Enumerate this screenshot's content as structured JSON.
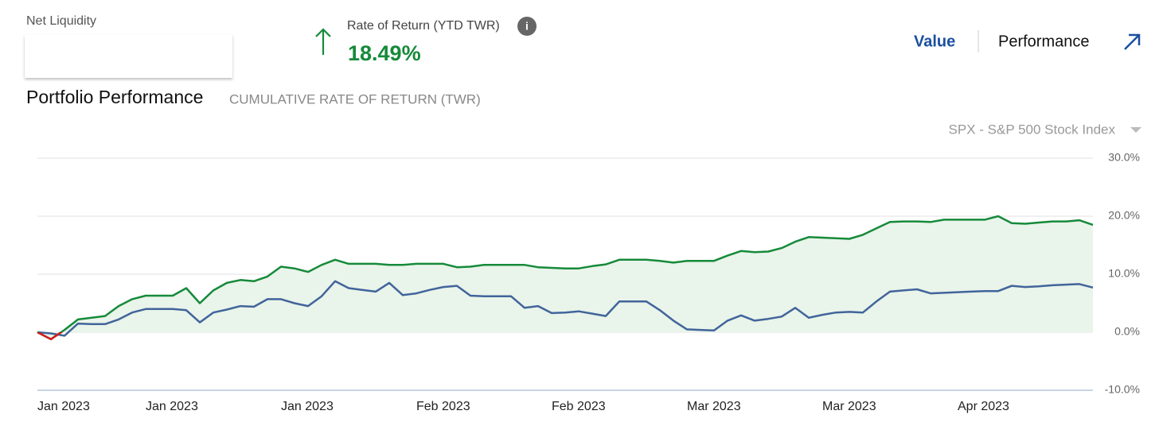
{
  "header": {
    "net_liquidity_label": "Net Liquidity",
    "return_label": "Rate of Return (YTD TWR)",
    "return_value": "18.49%",
    "tabs": [
      "Value",
      "Performance"
    ]
  },
  "chart_data": {
    "type": "line",
    "title": "Portfolio Performance",
    "subtitle": "CUMULATIVE RATE OF RETURN (TWR)",
    "benchmark": "SPX - S&P 500 Stock Index",
    "categories": [
      "Jan 2023",
      null,
      null,
      null,
      null,
      null,
      null,
      null,
      "Jan 2023",
      null,
      null,
      null,
      null,
      null,
      null,
      null,
      null,
      null,
      "Jan 2023",
      null,
      null,
      null,
      null,
      null,
      null,
      null,
      null,
      null,
      "Feb 2023",
      null,
      null,
      null,
      null,
      null,
      null,
      null,
      null,
      null,
      "Feb 2023",
      null,
      null,
      null,
      null,
      null,
      null,
      null,
      null,
      null,
      "Mar 2023",
      null,
      null,
      null,
      null,
      null,
      null,
      null,
      null,
      null,
      "Mar 2023",
      null,
      null,
      null,
      null,
      null,
      null,
      null,
      null,
      null,
      "Apr 2023",
      null,
      null,
      null,
      null,
      null,
      null,
      null,
      null,
      null,
      null
    ],
    "series": [
      {
        "color": "#168a3a",
        "negative_color": "#d7191c",
        "area_color": "#e9f4ea",
        "values": [
          0,
          -1.2,
          0.4,
          2.2,
          2.5,
          2.8,
          4.5,
          5.7,
          6.3,
          6.3,
          6.3,
          7.6,
          5.0,
          7.2,
          8.5,
          9.0,
          8.8,
          9.6,
          11.3,
          11.0,
          10.4,
          11.6,
          12.5,
          11.8,
          11.8,
          11.8,
          11.6,
          11.6,
          11.8,
          11.8,
          11.8,
          11.2,
          11.3,
          11.6,
          11.6,
          11.6,
          11.6,
          11.2,
          11.1,
          11.0,
          11.0,
          11.4,
          11.7,
          12.5,
          12.5,
          12.5,
          12.3,
          12.0,
          12.3,
          12.3,
          12.3,
          13.2,
          14.0,
          13.8,
          13.9,
          14.5,
          15.6,
          16.4,
          16.3,
          16.2,
          16.1,
          16.8,
          17.9,
          19.0,
          19.1,
          19.1,
          19.0,
          19.4,
          19.4,
          19.4,
          19.4,
          20.0,
          18.8,
          18.7,
          18.9,
          19.1,
          19.1,
          19.3,
          18.5
        ]
      },
      {
        "color": "#41649b",
        "values": [
          0,
          -0.2,
          -0.6,
          1.5,
          1.4,
          1.4,
          2.2,
          3.4,
          4.0,
          4.0,
          4.0,
          3.8,
          1.7,
          3.4,
          3.9,
          4.5,
          4.4,
          5.7,
          5.7,
          5.0,
          4.5,
          6.2,
          8.8,
          7.6,
          7.3,
          7.0,
          8.5,
          6.4,
          6.7,
          7.3,
          7.8,
          8.0,
          6.3,
          6.2,
          6.2,
          6.2,
          4.2,
          4.5,
          3.3,
          3.4,
          3.6,
          3.2,
          2.8,
          5.3,
          5.3,
          5.3,
          3.8,
          2.0,
          0.5,
          0.4,
          0.3,
          2.0,
          2.9,
          2.0,
          2.3,
          2.7,
          4.2,
          2.5,
          3.0,
          3.4,
          3.5,
          3.4,
          5.3,
          7.0,
          7.2,
          7.4,
          6.7,
          6.8,
          6.9,
          7.0,
          7.1,
          7.1,
          8.0,
          7.8,
          7.9,
          8.1,
          8.2,
          8.3,
          7.7
        ]
      }
    ],
    "ylim": [
      -10,
      30
    ],
    "yticks": [
      {
        "value": -10,
        "label": "-10.0%"
      },
      {
        "value": 0,
        "label": "0.0%"
      },
      {
        "value": 10,
        "label": "10.0%"
      },
      {
        "value": 20,
        "label": "20.0%"
      },
      {
        "value": 30,
        "label": "30.0%"
      }
    ],
    "grid": true
  }
}
